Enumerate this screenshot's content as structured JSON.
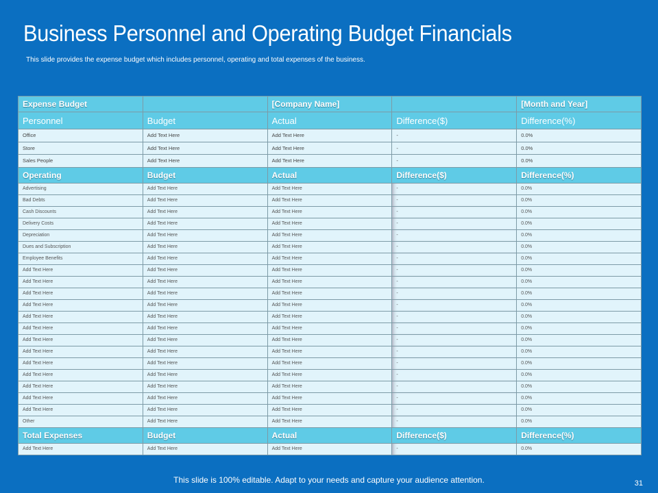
{
  "title": "Business Personnel and Operating Budget Financials",
  "subtitle": "This slide provides the expense budget which includes personnel, operating and total expenses of the business.",
  "table": {
    "top_header": [
      "Expense Budget",
      "",
      "[Company Name]",
      "",
      "[Month and Year]"
    ],
    "personnel_header": [
      "Personnel",
      "Budget",
      "Actual",
      "Difference($)",
      "Difference(%)"
    ],
    "personnel_rows": [
      [
        "Office",
        "Add Text Here",
        "Add Text Here",
        "-",
        "0.0%"
      ],
      [
        "Store",
        "Add Text Here",
        "Add Text Here",
        "-",
        "0.0%"
      ],
      [
        "Sales People",
        "Add Text Here",
        "Add Text Here",
        "-",
        "0.0%"
      ]
    ],
    "operating_header": [
      "Operating",
      "Budget",
      "Actual",
      "Difference($)",
      "Difference(%)"
    ],
    "operating_rows": [
      [
        "Advertising",
        "Add Text Here",
        "Add Text Here",
        "-",
        "0.0%"
      ],
      [
        "Bad Debts",
        "Add Text Here",
        "Add Text Here",
        "-",
        "0.0%"
      ],
      [
        "Cash Discounts",
        "Add Text Here",
        "Add Text Here",
        "-",
        "0.0%"
      ],
      [
        "Delivery Costs",
        "Add Text Here",
        "Add Text Here",
        "-",
        "0.0%"
      ],
      [
        "Depreciation",
        "Add Text Here",
        "Add Text Here",
        "-",
        "0.0%"
      ],
      [
        "Dues and Subscription",
        "Add Text Here",
        "Add Text Here",
        "-",
        "0.0%"
      ],
      [
        "Employee Benefits",
        "Add Text Here",
        "Add Text Here",
        "-",
        "0.0%"
      ],
      [
        "Add Text Here",
        "Add Text Here",
        "Add Text Here",
        "-",
        "0.0%"
      ],
      [
        "Add Text Here",
        "Add Text Here",
        "Add Text Here",
        "-",
        "0.0%"
      ],
      [
        "Add Text Here",
        "Add Text Here",
        "Add Text Here",
        "-",
        "0.0%"
      ],
      [
        "Add Text Here",
        "Add Text Here",
        "Add Text Here",
        "-",
        "0.0%"
      ],
      [
        "Add Text Here",
        "Add Text Here",
        "Add Text Here",
        "-",
        "0.0%"
      ],
      [
        "Add Text Here",
        "Add Text Here",
        "Add Text Here",
        "-",
        "0.0%"
      ],
      [
        "Add Text Here",
        "Add Text Here",
        "Add Text Here",
        "-",
        "0.0%"
      ],
      [
        "Add Text Here",
        "Add Text Here",
        "Add Text Here",
        "-",
        "0.0%"
      ],
      [
        "Add Text Here",
        "Add Text Here",
        "Add Text Here",
        "-",
        "0.0%"
      ],
      [
        "Add Text Here",
        "Add Text Here",
        "Add Text Here",
        "-",
        "0.0%"
      ],
      [
        "Add Text Here",
        "Add Text Here",
        "Add Text Here",
        "-",
        "0.0%"
      ],
      [
        "Add Text Here",
        "Add Text Here",
        "Add Text Here",
        "-",
        "0.0%"
      ],
      [
        "Add Text Here",
        "Add Text Here",
        "Add Text Here",
        "-",
        "0.0%"
      ],
      [
        "Other",
        "Add Text Here",
        "Add Text Here",
        "-",
        "0.0%"
      ]
    ],
    "total_header": [
      "Total Expenses",
      "Budget",
      "Actual",
      "Difference($)",
      "Difference(%)"
    ],
    "total_rows": [
      [
        "Add Text Here",
        "Add Text Here",
        "Add Text Here",
        "-",
        "0.0%"
      ]
    ]
  },
  "footer": "This slide is 100% editable. Adapt to your needs and capture your audience attention.",
  "page_number": "31",
  "colors": {
    "background": "#0b6fc1",
    "header_cell": "#5fcbe6",
    "body_cell": "#e1f4fb"
  }
}
